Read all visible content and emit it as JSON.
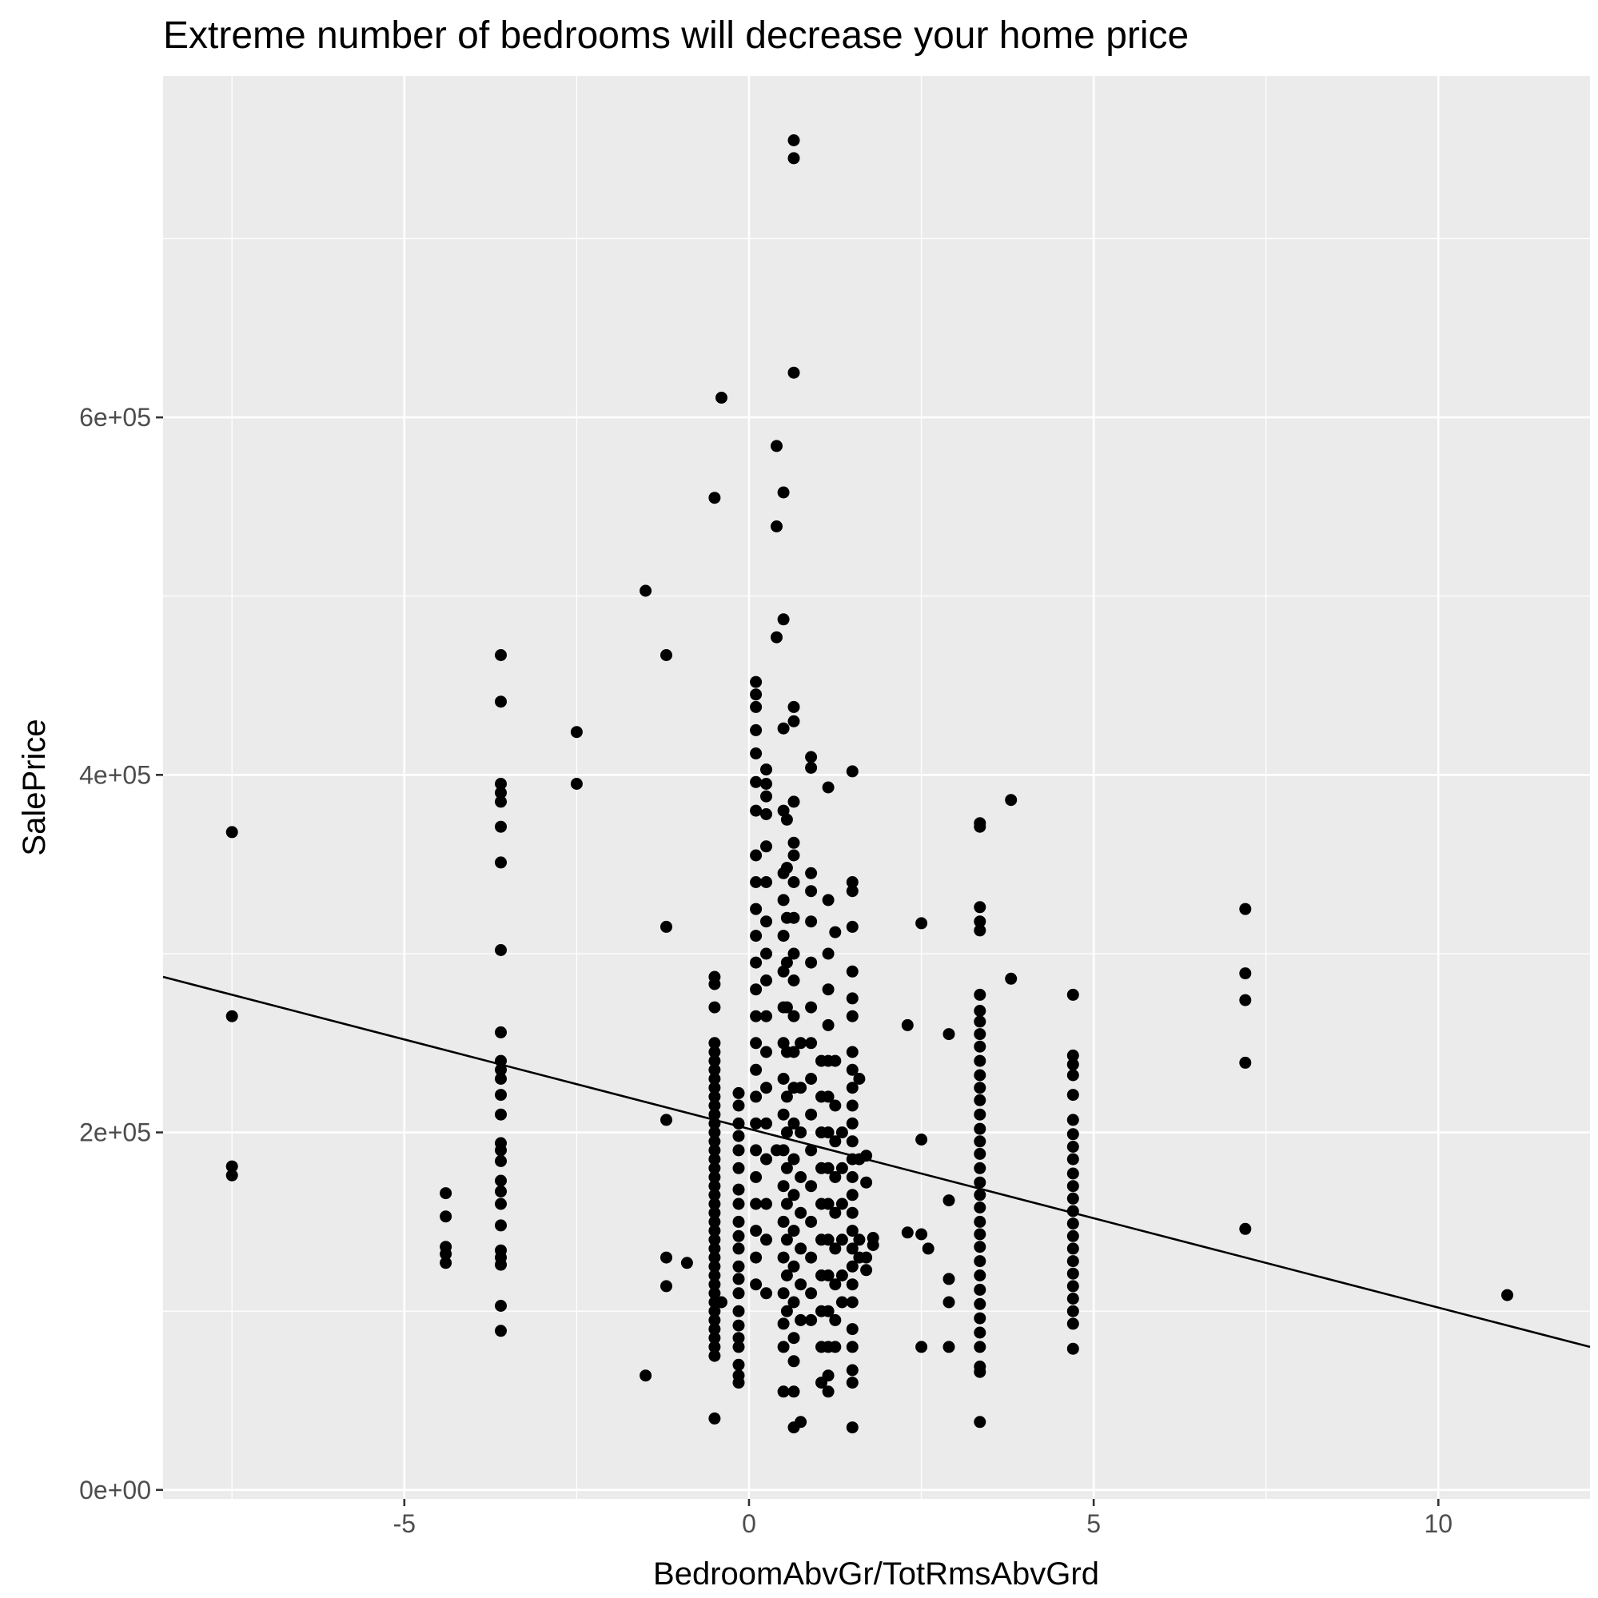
{
  "chart_data": {
    "type": "scatter",
    "title": "Extreme number of bedrooms will decrease your home price",
    "xlabel": "BedroomAbvGr/TotRmsAbvGrd",
    "ylabel": "SalePrice",
    "xlim": [
      -8.5,
      12.2
    ],
    "ylim": [
      -5000,
      791000
    ],
    "x_ticks": [
      -5,
      0,
      5,
      10
    ],
    "x_tick_labels": [
      "-5",
      "0",
      "5",
      "10"
    ],
    "y_ticks": [
      0,
      200000,
      400000,
      600000
    ],
    "y_tick_labels": [
      "0e+00",
      "2e+05",
      "4e+05",
      "6e+05"
    ],
    "grid": true,
    "legend": "none",
    "colors": {
      "panel": "#ebebeb",
      "grid": "#ffffff",
      "point": "#000000",
      "line": "#000000"
    },
    "trend_line": {
      "x": [
        -8.5,
        12.2
      ],
      "y": [
        287000,
        80000
      ]
    },
    "points": [
      [
        -7.5,
        368000
      ],
      [
        -7.5,
        265000
      ],
      [
        -7.5,
        181000
      ],
      [
        -7.5,
        176000
      ],
      [
        -4.4,
        166000
      ],
      [
        -4.4,
        153000
      ],
      [
        -4.4,
        136000
      ],
      [
        -4.4,
        132000
      ],
      [
        -4.4,
        127000
      ],
      [
        -3.6,
        467000
      ],
      [
        -3.6,
        441000
      ],
      [
        -3.6,
        395000
      ],
      [
        -3.6,
        390000
      ],
      [
        -3.6,
        385000
      ],
      [
        -3.6,
        371000
      ],
      [
        -3.6,
        351000
      ],
      [
        -3.6,
        302000
      ],
      [
        -3.6,
        256000
      ],
      [
        -3.6,
        240000
      ],
      [
        -3.6,
        235000
      ],
      [
        -3.6,
        230000
      ],
      [
        -3.6,
        221000
      ],
      [
        -3.6,
        210000
      ],
      [
        -3.6,
        194000
      ],
      [
        -3.6,
        190000
      ],
      [
        -3.6,
        184000
      ],
      [
        -3.6,
        173000
      ],
      [
        -3.6,
        167000
      ],
      [
        -3.6,
        160000
      ],
      [
        -3.6,
        148000
      ],
      [
        -3.6,
        134000
      ],
      [
        -3.6,
        130000
      ],
      [
        -3.6,
        126000
      ],
      [
        -3.6,
        103000
      ],
      [
        -3.6,
        89000
      ],
      [
        -2.5,
        424000
      ],
      [
        -2.5,
        395000
      ],
      [
        -1.5,
        503000
      ],
      [
        -1.5,
        64000
      ],
      [
        -1.2,
        467000
      ],
      [
        -1.2,
        315000
      ],
      [
        -1.2,
        207000
      ],
      [
        -1.2,
        130000
      ],
      [
        -1.2,
        114000
      ],
      [
        -0.9,
        127000
      ],
      [
        -0.5,
        555000
      ],
      [
        -0.5,
        287000
      ],
      [
        -0.5,
        283000
      ],
      [
        -0.5,
        270000
      ],
      [
        -0.5,
        250000
      ],
      [
        -0.5,
        245000
      ],
      [
        -0.5,
        240000
      ],
      [
        -0.5,
        235000
      ],
      [
        -0.5,
        230000
      ],
      [
        -0.5,
        225000
      ],
      [
        -0.5,
        220000
      ],
      [
        -0.5,
        215000
      ],
      [
        -0.5,
        210000
      ],
      [
        -0.5,
        205000
      ],
      [
        -0.5,
        200000
      ],
      [
        -0.5,
        195000
      ],
      [
        -0.5,
        190000
      ],
      [
        -0.5,
        185000
      ],
      [
        -0.5,
        180000
      ],
      [
        -0.5,
        175000
      ],
      [
        -0.5,
        170000
      ],
      [
        -0.5,
        165000
      ],
      [
        -0.5,
        160000
      ],
      [
        -0.5,
        155000
      ],
      [
        -0.5,
        150000
      ],
      [
        -0.5,
        145000
      ],
      [
        -0.5,
        140000
      ],
      [
        -0.5,
        135000
      ],
      [
        -0.5,
        130000
      ],
      [
        -0.5,
        125000
      ],
      [
        -0.5,
        120000
      ],
      [
        -0.5,
        115000
      ],
      [
        -0.5,
        110000
      ],
      [
        -0.5,
        105000
      ],
      [
        -0.5,
        100000
      ],
      [
        -0.5,
        95000
      ],
      [
        -0.5,
        90000
      ],
      [
        -0.5,
        85000
      ],
      [
        -0.5,
        80000
      ],
      [
        -0.5,
        75000
      ],
      [
        -0.5,
        40000
      ],
      [
        -0.4,
        611000
      ],
      [
        -0.4,
        105000
      ],
      [
        -0.15,
        222000
      ],
      [
        -0.15,
        215000
      ],
      [
        -0.15,
        205000
      ],
      [
        -0.15,
        198000
      ],
      [
        -0.15,
        190000
      ],
      [
        -0.15,
        180000
      ],
      [
        -0.15,
        168000
      ],
      [
        -0.15,
        160000
      ],
      [
        -0.15,
        150000
      ],
      [
        -0.15,
        142000
      ],
      [
        -0.15,
        135000
      ],
      [
        -0.15,
        125000
      ],
      [
        -0.15,
        118000
      ],
      [
        -0.15,
        110000
      ],
      [
        -0.15,
        100000
      ],
      [
        -0.15,
        92000
      ],
      [
        -0.15,
        85000
      ],
      [
        -0.15,
        80000
      ],
      [
        -0.15,
        70000
      ],
      [
        -0.15,
        64000
      ],
      [
        -0.15,
        60000
      ],
      [
        0.1,
        452000
      ],
      [
        0.1,
        445000
      ],
      [
        0.1,
        438000
      ],
      [
        0.1,
        425000
      ],
      [
        0.1,
        412000
      ],
      [
        0.1,
        396000
      ],
      [
        0.1,
        380000
      ],
      [
        0.1,
        355000
      ],
      [
        0.1,
        340000
      ],
      [
        0.1,
        325000
      ],
      [
        0.1,
        310000
      ],
      [
        0.1,
        295000
      ],
      [
        0.1,
        280000
      ],
      [
        0.1,
        265000
      ],
      [
        0.1,
        250000
      ],
      [
        0.1,
        235000
      ],
      [
        0.1,
        220000
      ],
      [
        0.1,
        205000
      ],
      [
        0.1,
        190000
      ],
      [
        0.1,
        175000
      ],
      [
        0.1,
        160000
      ],
      [
        0.1,
        145000
      ],
      [
        0.1,
        130000
      ],
      [
        0.1,
        115000
      ],
      [
        0.25,
        403000
      ],
      [
        0.25,
        395000
      ],
      [
        0.25,
        388000
      ],
      [
        0.25,
        378000
      ],
      [
        0.25,
        360000
      ],
      [
        0.25,
        340000
      ],
      [
        0.25,
        318000
      ],
      [
        0.25,
        300000
      ],
      [
        0.25,
        285000
      ],
      [
        0.25,
        265000
      ],
      [
        0.25,
        245000
      ],
      [
        0.25,
        225000
      ],
      [
        0.25,
        205000
      ],
      [
        0.25,
        185000
      ],
      [
        0.25,
        160000
      ],
      [
        0.25,
        140000
      ],
      [
        0.25,
        110000
      ],
      [
        0.4,
        584000
      ],
      [
        0.4,
        539000
      ],
      [
        0.4,
        477000
      ],
      [
        0.4,
        190000
      ],
      [
        0.5,
        558000
      ],
      [
        0.5,
        487000
      ],
      [
        0.5,
        426000
      ],
      [
        0.5,
        380000
      ],
      [
        0.5,
        345000
      ],
      [
        0.5,
        330000
      ],
      [
        0.5,
        310000
      ],
      [
        0.5,
        290000
      ],
      [
        0.5,
        270000
      ],
      [
        0.5,
        250000
      ],
      [
        0.5,
        230000
      ],
      [
        0.5,
        210000
      ],
      [
        0.5,
        190000
      ],
      [
        0.5,
        170000
      ],
      [
        0.5,
        150000
      ],
      [
        0.5,
        130000
      ],
      [
        0.5,
        110000
      ],
      [
        0.5,
        93000
      ],
      [
        0.5,
        80000
      ],
      [
        0.5,
        55000
      ],
      [
        0.55,
        375000
      ],
      [
        0.55,
        348000
      ],
      [
        0.55,
        320000
      ],
      [
        0.55,
        295000
      ],
      [
        0.55,
        270000
      ],
      [
        0.55,
        245000
      ],
      [
        0.55,
        220000
      ],
      [
        0.55,
        200000
      ],
      [
        0.55,
        180000
      ],
      [
        0.55,
        160000
      ],
      [
        0.55,
        140000
      ],
      [
        0.55,
        120000
      ],
      [
        0.55,
        100000
      ],
      [
        0.65,
        755000
      ],
      [
        0.65,
        745000
      ],
      [
        0.65,
        625000
      ],
      [
        0.65,
        438000
      ],
      [
        0.65,
        430000
      ],
      [
        0.65,
        385000
      ],
      [
        0.65,
        362000
      ],
      [
        0.65,
        355000
      ],
      [
        0.65,
        340000
      ],
      [
        0.65,
        320000
      ],
      [
        0.65,
        300000
      ],
      [
        0.65,
        285000
      ],
      [
        0.65,
        265000
      ],
      [
        0.65,
        245000
      ],
      [
        0.65,
        225000
      ],
      [
        0.65,
        205000
      ],
      [
        0.65,
        185000
      ],
      [
        0.65,
        165000
      ],
      [
        0.65,
        145000
      ],
      [
        0.65,
        125000
      ],
      [
        0.65,
        105000
      ],
      [
        0.65,
        85000
      ],
      [
        0.65,
        72000
      ],
      [
        0.65,
        55000
      ],
      [
        0.65,
        35000
      ],
      [
        0.75,
        250000
      ],
      [
        0.75,
        225000
      ],
      [
        0.75,
        200000
      ],
      [
        0.75,
        175000
      ],
      [
        0.75,
        155000
      ],
      [
        0.75,
        135000
      ],
      [
        0.75,
        115000
      ],
      [
        0.75,
        95000
      ],
      [
        0.75,
        38000
      ],
      [
        0.9,
        410000
      ],
      [
        0.9,
        404000
      ],
      [
        0.9,
        345000
      ],
      [
        0.9,
        335000
      ],
      [
        0.9,
        318000
      ],
      [
        0.9,
        295000
      ],
      [
        0.9,
        270000
      ],
      [
        0.9,
        250000
      ],
      [
        0.9,
        230000
      ],
      [
        0.9,
        210000
      ],
      [
        0.9,
        190000
      ],
      [
        0.9,
        170000
      ],
      [
        0.9,
        150000
      ],
      [
        0.9,
        130000
      ],
      [
        0.9,
        110000
      ],
      [
        0.9,
        95000
      ],
      [
        1.05,
        240000
      ],
      [
        1.05,
        220000
      ],
      [
        1.05,
        200000
      ],
      [
        1.05,
        180000
      ],
      [
        1.05,
        160000
      ],
      [
        1.05,
        140000
      ],
      [
        1.05,
        120000
      ],
      [
        1.05,
        100000
      ],
      [
        1.05,
        80000
      ],
      [
        1.05,
        60000
      ],
      [
        1.15,
        393000
      ],
      [
        1.15,
        330000
      ],
      [
        1.15,
        300000
      ],
      [
        1.15,
        280000
      ],
      [
        1.15,
        260000
      ],
      [
        1.15,
        240000
      ],
      [
        1.15,
        220000
      ],
      [
        1.15,
        200000
      ],
      [
        1.15,
        180000
      ],
      [
        1.15,
        160000
      ],
      [
        1.15,
        140000
      ],
      [
        1.15,
        120000
      ],
      [
        1.15,
        100000
      ],
      [
        1.15,
        80000
      ],
      [
        1.15,
        64000
      ],
      [
        1.15,
        55000
      ],
      [
        1.25,
        312000
      ],
      [
        1.25,
        240000
      ],
      [
        1.25,
        215000
      ],
      [
        1.25,
        195000
      ],
      [
        1.25,
        175000
      ],
      [
        1.25,
        155000
      ],
      [
        1.25,
        135000
      ],
      [
        1.25,
        115000
      ],
      [
        1.25,
        95000
      ],
      [
        1.25,
        80000
      ],
      [
        1.35,
        200000
      ],
      [
        1.35,
        180000
      ],
      [
        1.35,
        160000
      ],
      [
        1.35,
        140000
      ],
      [
        1.35,
        120000
      ],
      [
        1.35,
        105000
      ],
      [
        1.5,
        402000
      ],
      [
        1.5,
        340000
      ],
      [
        1.5,
        335000
      ],
      [
        1.5,
        315000
      ],
      [
        1.5,
        290000
      ],
      [
        1.5,
        275000
      ],
      [
        1.5,
        265000
      ],
      [
        1.5,
        245000
      ],
      [
        1.5,
        235000
      ],
      [
        1.5,
        225000
      ],
      [
        1.5,
        215000
      ],
      [
        1.5,
        205000
      ],
      [
        1.5,
        195000
      ],
      [
        1.5,
        185000
      ],
      [
        1.5,
        175000
      ],
      [
        1.5,
        165000
      ],
      [
        1.5,
        155000
      ],
      [
        1.5,
        145000
      ],
      [
        1.5,
        135000
      ],
      [
        1.5,
        125000
      ],
      [
        1.5,
        115000
      ],
      [
        1.5,
        105000
      ],
      [
        1.5,
        90000
      ],
      [
        1.5,
        80000
      ],
      [
        1.5,
        67000
      ],
      [
        1.5,
        60000
      ],
      [
        1.5,
        35000
      ],
      [
        1.6,
        230000
      ],
      [
        1.6,
        185000
      ],
      [
        1.6,
        140000
      ],
      [
        1.6,
        130000
      ],
      [
        1.7,
        187000
      ],
      [
        1.7,
        172000
      ],
      [
        1.7,
        130000
      ],
      [
        1.7,
        123000
      ],
      [
        1.8,
        141000
      ],
      [
        1.8,
        137000
      ],
      [
        2.3,
        260000
      ],
      [
        2.3,
        144000
      ],
      [
        2.5,
        317000
      ],
      [
        2.5,
        196000
      ],
      [
        2.5,
        143000
      ],
      [
        2.5,
        80000
      ],
      [
        2.6,
        135000
      ],
      [
        2.9,
        255000
      ],
      [
        2.9,
        162000
      ],
      [
        2.9,
        118000
      ],
      [
        2.9,
        105000
      ],
      [
        2.9,
        80000
      ],
      [
        3.35,
        373000
      ],
      [
        3.35,
        371000
      ],
      [
        3.35,
        326000
      ],
      [
        3.35,
        318000
      ],
      [
        3.35,
        313000
      ],
      [
        3.35,
        277000
      ],
      [
        3.35,
        268000
      ],
      [
        3.35,
        262000
      ],
      [
        3.35,
        255000
      ],
      [
        3.35,
        248000
      ],
      [
        3.35,
        240000
      ],
      [
        3.35,
        232000
      ],
      [
        3.35,
        225000
      ],
      [
        3.35,
        218000
      ],
      [
        3.35,
        210000
      ],
      [
        3.35,
        202000
      ],
      [
        3.35,
        195000
      ],
      [
        3.35,
        188000
      ],
      [
        3.35,
        180000
      ],
      [
        3.35,
        172000
      ],
      [
        3.35,
        165000
      ],
      [
        3.35,
        158000
      ],
      [
        3.35,
        150000
      ],
      [
        3.35,
        143000
      ],
      [
        3.35,
        136000
      ],
      [
        3.35,
        128000
      ],
      [
        3.35,
        120000
      ],
      [
        3.35,
        112000
      ],
      [
        3.35,
        104000
      ],
      [
        3.35,
        96000
      ],
      [
        3.35,
        88000
      ],
      [
        3.35,
        80000
      ],
      [
        3.35,
        69000
      ],
      [
        3.35,
        66000
      ],
      [
        3.35,
        38000
      ],
      [
        3.8,
        386000
      ],
      [
        3.8,
        286000
      ],
      [
        4.7,
        277000
      ],
      [
        4.7,
        243000
      ],
      [
        4.7,
        238000
      ],
      [
        4.7,
        232000
      ],
      [
        4.7,
        221000
      ],
      [
        4.7,
        207000
      ],
      [
        4.7,
        199000
      ],
      [
        4.7,
        192000
      ],
      [
        4.7,
        185000
      ],
      [
        4.7,
        177000
      ],
      [
        4.7,
        170000
      ],
      [
        4.7,
        163000
      ],
      [
        4.7,
        156000
      ],
      [
        4.7,
        149000
      ],
      [
        4.7,
        142000
      ],
      [
        4.7,
        135000
      ],
      [
        4.7,
        128000
      ],
      [
        4.7,
        121000
      ],
      [
        4.7,
        114000
      ],
      [
        4.7,
        107000
      ],
      [
        4.7,
        100000
      ],
      [
        4.7,
        93000
      ],
      [
        4.7,
        79000
      ],
      [
        7.2,
        325000
      ],
      [
        7.2,
        289000
      ],
      [
        7.2,
        274000
      ],
      [
        7.2,
        239000
      ],
      [
        7.2,
        146000
      ],
      [
        11.0,
        109000
      ]
    ]
  }
}
